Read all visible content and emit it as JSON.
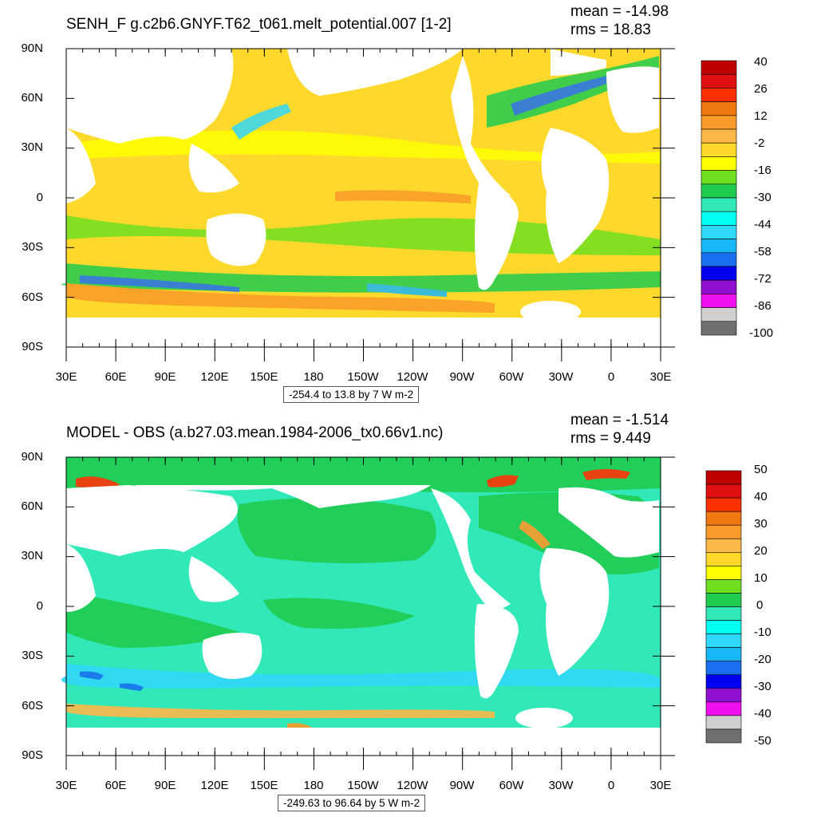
{
  "panels": [
    {
      "title": "SENH_F g.c2b6.GNYF.T62_t061.melt_potential.007 [1-2]",
      "mean": "mean = -14.98",
      "rms": "rms = 18.83",
      "range_label": "-254.4 to 13.8 by 7 W m-2",
      "lat_labels": [
        "90N",
        "60N",
        "30N",
        "0",
        "30S",
        "60S",
        "90S"
      ],
      "lon_labels": [
        "30E",
        "60E",
        "90E",
        "120E",
        "150E",
        "180",
        "150W",
        "120W",
        "90W",
        "60W",
        "30W",
        "0",
        "30E"
      ],
      "colorbar": {
        "labels": [
          "40",
          "26",
          "12",
          "-2",
          "-16",
          "-30",
          "-44",
          "-58",
          "-72",
          "-86",
          "-100"
        ],
        "colors": [
          "#c00000",
          "#e01010",
          "#ff3000",
          "#f07810",
          "#fa9a28",
          "#fcb848",
          "#fed82a",
          "#ffff00",
          "#6fe020",
          "#20cc50",
          "#30e8b8",
          "#00fff0",
          "#30d8f8",
          "#18b8f8",
          "#1870f0",
          "#0000f0",
          "#9010d0",
          "#f010f0",
          "#d0d0d0",
          "#707070"
        ]
      },
      "ocean_color": "#fed82a"
    },
    {
      "title": "MODEL - OBS (a.b27.03.mean.1984-2006_tx0.66v1.nc)",
      "mean": "mean = -1.514",
      "rms": "rms = 9.449",
      "range_label": "-249.63 to 96.64 by 5 W m-2",
      "lat_labels": [
        "90N",
        "60N",
        "30N",
        "0",
        "30S",
        "60S",
        "90S"
      ],
      "lon_labels": [
        "30E",
        "60E",
        "90E",
        "120E",
        "150E",
        "180",
        "150W",
        "120W",
        "90W",
        "60W",
        "30W",
        "0",
        "30E"
      ],
      "colorbar": {
        "labels": [
          "50",
          "40",
          "30",
          "20",
          "10",
          "0",
          "-10",
          "-20",
          "-30",
          "-40",
          "-50"
        ],
        "colors": [
          "#c00000",
          "#e01010",
          "#ff3000",
          "#f07810",
          "#fa9a28",
          "#fcb848",
          "#fed82a",
          "#ffff00",
          "#6fe020",
          "#20cc50",
          "#30e8b8",
          "#00fff0",
          "#30d8f8",
          "#18b8f8",
          "#1870f0",
          "#0000f0",
          "#9010d0",
          "#f010f0",
          "#d0d0d0",
          "#707070"
        ]
      },
      "ocean_color": "#30e8b8"
    }
  ]
}
